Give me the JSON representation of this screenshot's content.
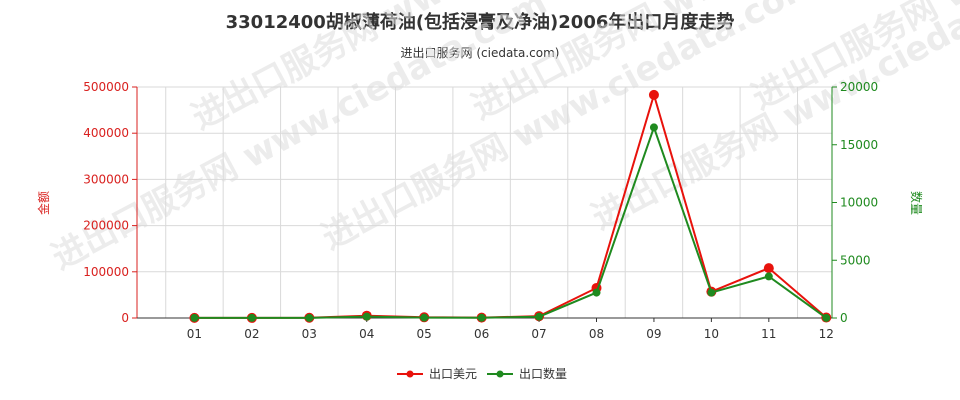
{
  "header": {
    "title": "33012400胡椒薄荷油(包括浸膏及净油)2006年出口月度走势",
    "subtitle": "进出口服务网 (ciedata.com)"
  },
  "watermark": "进出口服务网 www.ciedata.com",
  "chart_data": {
    "type": "line",
    "categories": [
      "01",
      "02",
      "03",
      "04",
      "05",
      "06",
      "07",
      "08",
      "09",
      "10",
      "11",
      "12"
    ],
    "y_left": {
      "label": "金额",
      "ticks": [
        "0",
        "100000",
        "200000",
        "300000",
        "400000",
        "500000"
      ],
      "range": [
        0,
        500000
      ],
      "color": "#d9211f"
    },
    "y_right": {
      "label": "数量",
      "ticks": [
        "0",
        "5000",
        "10000",
        "15000",
        "20000"
      ],
      "range": [
        0,
        20000
      ],
      "color": "#1f8a1f"
    },
    "grid": true,
    "legend_position": "bottom",
    "series": [
      {
        "name": "出口美元",
        "axis": "left",
        "color": "#e8120c",
        "values": [
          300,
          200,
          500,
          5000,
          1500,
          800,
          4000,
          65000,
          483000,
          57000,
          108000,
          1000
        ]
      },
      {
        "name": "出口数量",
        "axis": "right",
        "color": "#1f8a1f",
        "values": [
          10,
          10,
          10,
          120,
          30,
          20,
          110,
          2200,
          16500,
          2200,
          3600,
          10
        ]
      }
    ]
  }
}
